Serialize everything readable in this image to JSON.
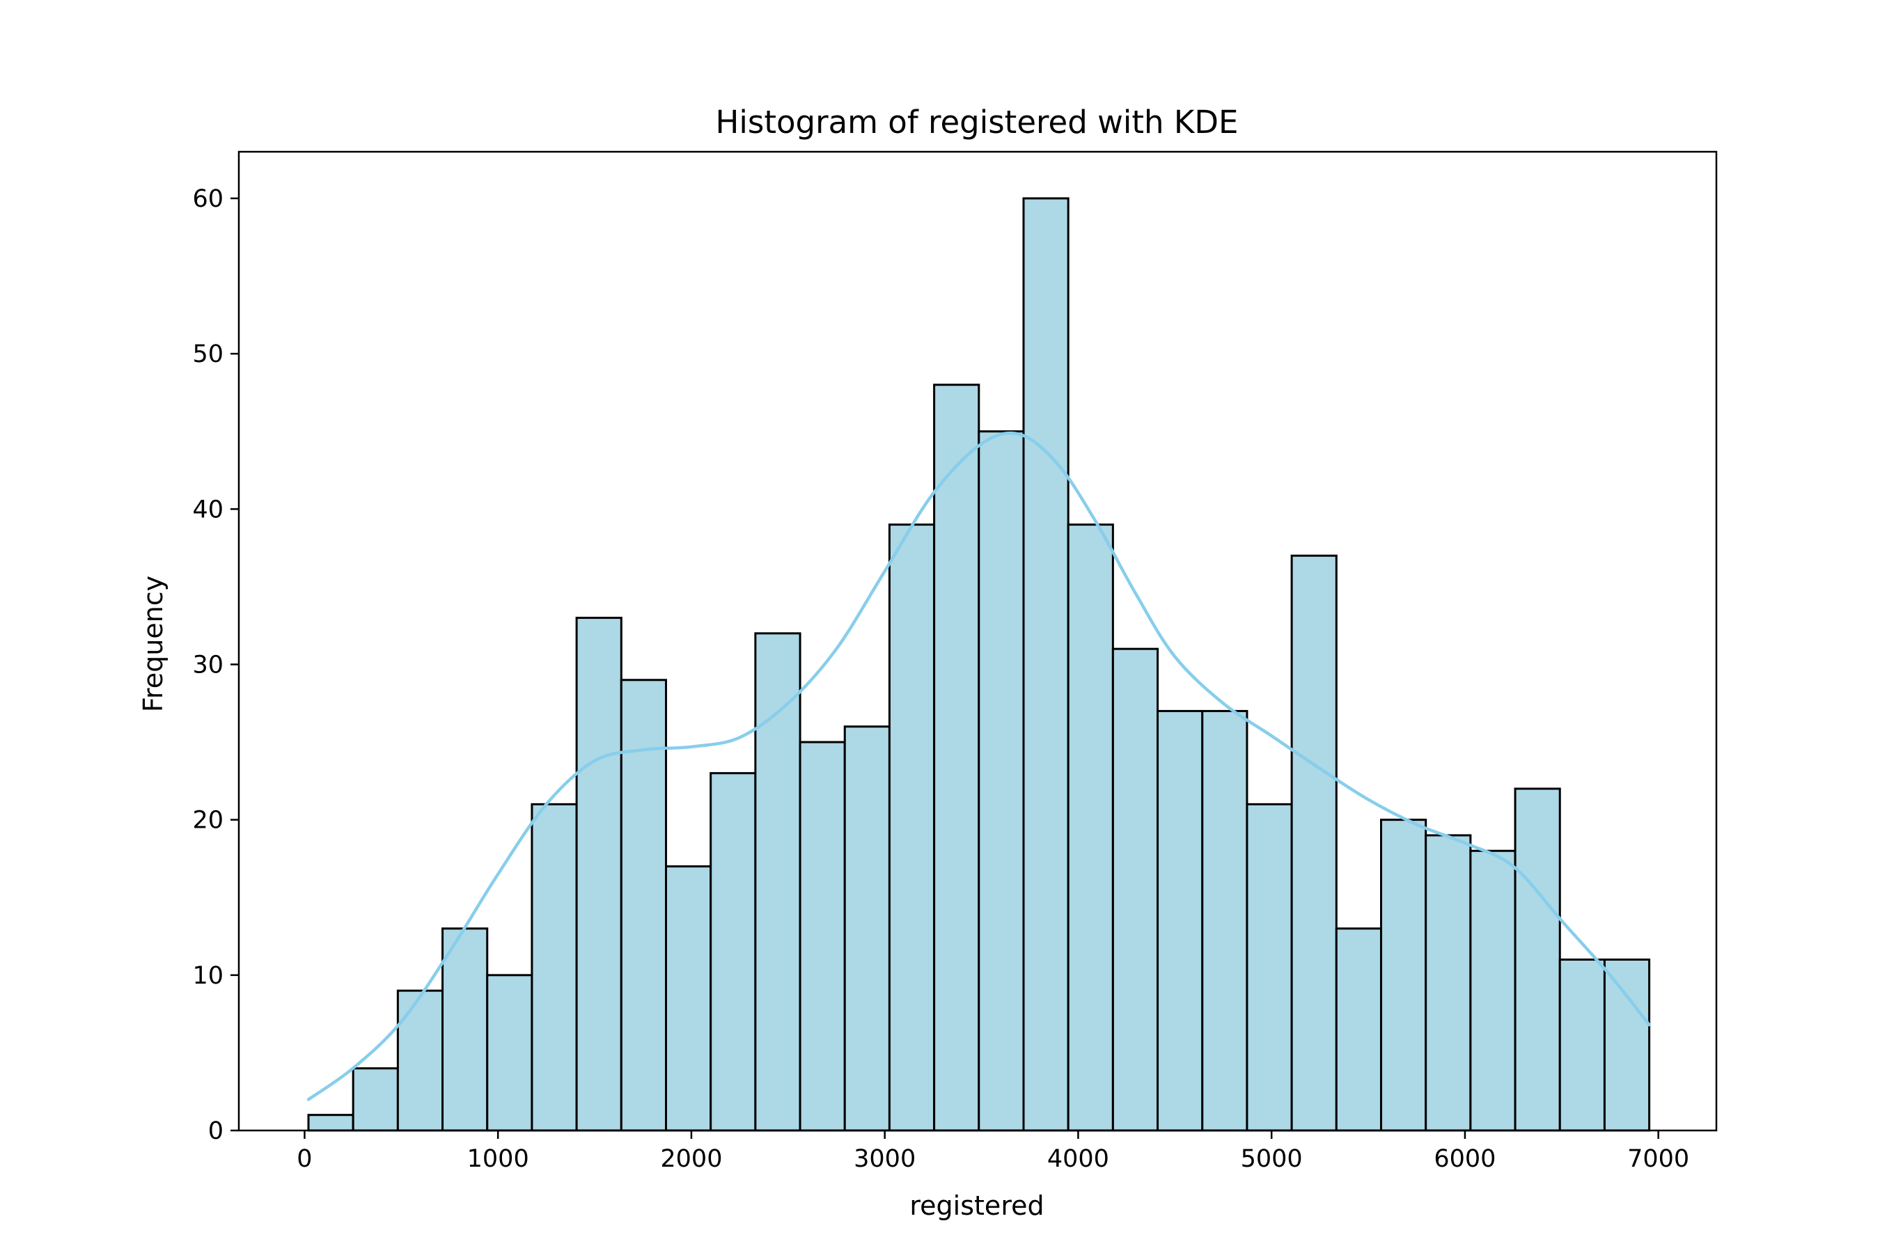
{
  "chart_data": {
    "type": "bar",
    "title": "Histogram of registered with KDE",
    "xlabel": "registered",
    "ylabel": "Frequency",
    "xlim": [
      -340,
      7300
    ],
    "ylim": [
      0,
      63
    ],
    "x_ticks": [
      0,
      1000,
      2000,
      3000,
      4000,
      5000,
      6000,
      7000
    ],
    "y_ticks": [
      0,
      10,
      20,
      30,
      40,
      50,
      60
    ],
    "bin_edges": [
      20,
      251.1,
      482.2,
      713.3,
      944.4,
      1175.5,
      1406.6,
      1637.7,
      1868.8,
      2099.9,
      2331,
      2562.1,
      2793.2,
      3024.3,
      3255.4,
      3486.5,
      3717.6,
      3948.7,
      4179.8,
      4410.9,
      4642,
      4873.1,
      5104.2,
      5335.3,
      5566.4,
      5797.5,
      6028.6,
      6259.7,
      6490.8,
      6721.9,
      6953
    ],
    "values": [
      1,
      4,
      9,
      13,
      10,
      21,
      33,
      29,
      17,
      23,
      32,
      25,
      26,
      39,
      48,
      45,
      60,
      39,
      31,
      27,
      27,
      21,
      37,
      13,
      20,
      19,
      18,
      22,
      11,
      11
    ],
    "kde": {
      "x": [
        20,
        250,
        500,
        750,
        1000,
        1250,
        1500,
        1750,
        2000,
        2250,
        2500,
        2750,
        3000,
        3250,
        3500,
        3700,
        3900,
        4100,
        4300,
        4500,
        4750,
        5000,
        5250,
        5500,
        5750,
        6000,
        6250,
        6500,
        6750,
        6953
      ],
      "y": [
        2.0,
        4.0,
        7.0,
        11.5,
        16.5,
        21.0,
        23.8,
        24.5,
        24.7,
        25.3,
        27.5,
        31.0,
        36.0,
        41.0,
        44.2,
        44.8,
        42.8,
        39.0,
        34.5,
        30.5,
        27.5,
        25.4,
        23.3,
        21.3,
        19.7,
        18.5,
        17.0,
        13.5,
        10.0,
        6.8
      ]
    },
    "colors": {
      "bar_fill": "#add8e6",
      "bar_edge": "#000000",
      "kde_line": "#87ceeb"
    },
    "grid": false,
    "legend": "none"
  }
}
